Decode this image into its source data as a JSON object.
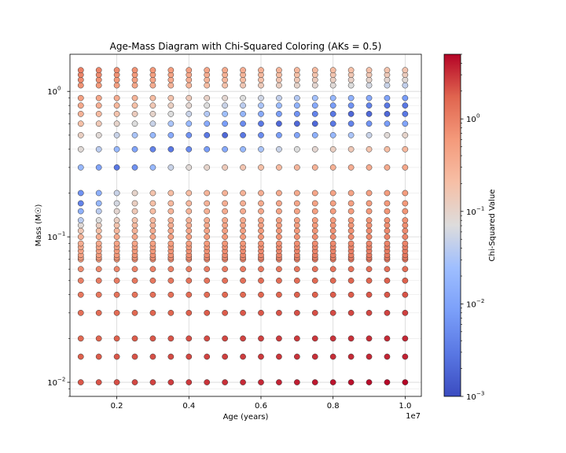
{
  "chart_data": {
    "type": "scatter",
    "title": "Age-Mass Diagram with Chi-Squared Coloring (AKs = 0.5)",
    "xlabel": "Age (years)",
    "ylabel": "Mass (M☉)",
    "x_offset_label": "1e7",
    "x_tick_labels": [
      "0.2",
      "0.4",
      "0.6",
      "0.8",
      "1.0"
    ],
    "y_tick_labels": [
      "10",
      "10",
      "10"
    ],
    "y_tick_exponents": [
      "−2",
      "−1",
      "0"
    ],
    "xscale": "linear",
    "yscale": "log",
    "xlim": [
      700000,
      10450000
    ],
    "ylim": [
      0.008,
      1.8
    ],
    "grid": true,
    "colorbar": {
      "label": "Chi-Squared Value",
      "colormap": "coolwarm",
      "scale": "log",
      "range": [
        0.001,
        5
      ],
      "tick_labels": [
        "10",
        "10",
        "10",
        "10"
      ],
      "tick_exponents": [
        "−3",
        "−2",
        "−1",
        "0"
      ]
    },
    "x": [
      1000000,
      1500000,
      2000000,
      2500000,
      3000000,
      3500000,
      4000000,
      4500000,
      5000000,
      5500000,
      6000000,
      6500000,
      7000000,
      7500000,
      8000000,
      8500000,
      9000000,
      9500000,
      10000000
    ],
    "masses": [
      0.01,
      0.015,
      0.02,
      0.03,
      0.04,
      0.05,
      0.06,
      0.07,
      0.072,
      0.075,
      0.08,
      0.085,
      0.09,
      0.1,
      0.11,
      0.12,
      0.13,
      0.15,
      0.17,
      0.2,
      0.3,
      0.4,
      0.5,
      0.6,
      0.7,
      0.8,
      0.9,
      1.0,
      1.1,
      1.2,
      1.3,
      1.4
    ],
    "chi2_by_mass": {
      "0.01": [
        2.0,
        2.1,
        2.2,
        2.4,
        2.5,
        2.7,
        2.8,
        3.0,
        3.1,
        3.3,
        3.4,
        3.6,
        3.8,
        4.0,
        4.2,
        4.4,
        4.6,
        4.8,
        5.0
      ],
      "0.015": [
        1.8,
        1.9,
        2.0,
        2.1,
        2.2,
        2.3,
        2.4,
        2.5,
        2.6,
        2.7,
        2.8,
        2.9,
        3.0,
        3.1,
        3.2,
        3.3,
        3.4,
        3.5,
        3.6
      ],
      "0.02": [
        1.6,
        1.7,
        1.8,
        1.9,
        2.0,
        2.1,
        2.2,
        2.3,
        2.4,
        2.5,
        2.6,
        2.7,
        2.8,
        2.9,
        3.0,
        3.1,
        3.2,
        3.3,
        3.4
      ],
      "0.03": [
        1.4,
        1.5,
        1.5,
        1.6,
        1.7,
        1.7,
        1.8,
        1.9,
        1.9,
        2.0,
        2.0,
        2.1,
        2.2,
        2.2,
        2.3,
        2.4,
        2.4,
        2.5,
        2.6
      ],
      "0.04": [
        1.2,
        1.2,
        1.3,
        1.3,
        1.4,
        1.4,
        1.5,
        1.5,
        1.6,
        1.6,
        1.7,
        1.7,
        1.8,
        1.8,
        1.9,
        1.9,
        2.0,
        2.0,
        2.1
      ],
      "0.05": [
        1.0,
        1.1,
        1.1,
        1.2,
        1.2,
        1.2,
        1.3,
        1.3,
        1.4,
        1.4,
        1.5,
        1.5,
        1.5,
        1.6,
        1.6,
        1.7,
        1.7,
        1.8,
        1.8
      ],
      "0.06": [
        0.8,
        0.85,
        0.9,
        0.95,
        1.0,
        1.0,
        1.05,
        1.1,
        1.1,
        1.15,
        1.2,
        1.2,
        1.25,
        1.3,
        1.3,
        1.35,
        1.4,
        1.4,
        1.45
      ],
      "0.07": [
        0.6,
        0.65,
        0.7,
        0.75,
        0.8,
        0.8,
        0.85,
        0.9,
        0.9,
        0.95,
        1.0,
        1.0,
        1.05,
        1.1,
        1.1,
        1.15,
        1.2,
        1.2,
        1.25
      ],
      "0.072": [
        0.55,
        0.6,
        0.65,
        0.7,
        0.75,
        0.75,
        0.8,
        0.85,
        0.85,
        0.9,
        0.95,
        0.95,
        1.0,
        1.05,
        1.05,
        1.1,
        1.15,
        1.15,
        1.2
      ],
      "0.075": [
        0.5,
        0.55,
        0.6,
        0.65,
        0.7,
        0.7,
        0.75,
        0.8,
        0.8,
        0.85,
        0.9,
        0.9,
        0.95,
        1.0,
        1.0,
        1.05,
        1.1,
        1.1,
        1.15
      ],
      "0.08": [
        0.45,
        0.5,
        0.55,
        0.6,
        0.6,
        0.65,
        0.7,
        0.7,
        0.75,
        0.8,
        0.8,
        0.85,
        0.9,
        0.9,
        0.95,
        1.0,
        1.0,
        1.05,
        1.1
      ],
      "0.085": [
        0.4,
        0.45,
        0.5,
        0.5,
        0.55,
        0.6,
        0.6,
        0.65,
        0.7,
        0.7,
        0.75,
        0.8,
        0.8,
        0.85,
        0.9,
        0.9,
        0.95,
        1.0,
        1.0
      ],
      "0.09": [
        0.35,
        0.4,
        0.45,
        0.45,
        0.5,
        0.55,
        0.55,
        0.6,
        0.65,
        0.65,
        0.7,
        0.75,
        0.75,
        0.8,
        0.85,
        0.85,
        0.9,
        0.95,
        0.95
      ],
      "0.1": [
        0.3,
        0.35,
        0.4,
        0.4,
        0.45,
        0.5,
        0.5,
        0.55,
        0.6,
        0.6,
        0.65,
        0.7,
        0.7,
        0.75,
        0.8,
        0.8,
        0.85,
        0.9,
        0.9
      ],
      "0.11": [
        0.15,
        0.2,
        0.25,
        0.3,
        0.35,
        0.4,
        0.4,
        0.45,
        0.5,
        0.5,
        0.55,
        0.6,
        0.6,
        0.65,
        0.7,
        0.7,
        0.75,
        0.8,
        0.8
      ],
      "0.12": [
        0.08,
        0.12,
        0.18,
        0.25,
        0.3,
        0.35,
        0.35,
        0.4,
        0.45,
        0.45,
        0.5,
        0.55,
        0.55,
        0.6,
        0.65,
        0.65,
        0.7,
        0.75,
        0.75
      ],
      "0.13": [
        0.04,
        0.07,
        0.12,
        0.18,
        0.25,
        0.3,
        0.3,
        0.35,
        0.4,
        0.4,
        0.45,
        0.5,
        0.5,
        0.55,
        0.6,
        0.6,
        0.65,
        0.7,
        0.7
      ],
      "0.15": [
        0.015,
        0.04,
        0.09,
        0.15,
        0.22,
        0.28,
        0.28,
        0.32,
        0.36,
        0.36,
        0.4,
        0.45,
        0.45,
        0.5,
        0.55,
        0.55,
        0.6,
        0.65,
        0.65
      ],
      "0.17": [
        0.004,
        0.02,
        0.06,
        0.12,
        0.2,
        0.25,
        0.25,
        0.3,
        0.33,
        0.33,
        0.38,
        0.42,
        0.42,
        0.46,
        0.5,
        0.5,
        0.55,
        0.6,
        0.6
      ],
      "0.2": [
        0.006,
        0.015,
        0.05,
        0.1,
        0.18,
        0.22,
        0.22,
        0.28,
        0.3,
        0.3,
        0.34,
        0.38,
        0.38,
        0.42,
        0.46,
        0.46,
        0.5,
        0.55,
        0.55
      ],
      "0.3": [
        0.02,
        0.01,
        0.003,
        0.006,
        0.02,
        0.05,
        0.08,
        0.1,
        0.14,
        0.17,
        0.2,
        0.24,
        0.27,
        0.3,
        0.32,
        0.34,
        0.36,
        0.38,
        0.4
      ],
      "0.4": [
        0.08,
        0.04,
        0.02,
        0.01,
        0.004,
        0.003,
        0.005,
        0.008,
        0.012,
        0.02,
        0.03,
        0.05,
        0.07,
        0.09,
        0.12,
        0.15,
        0.18,
        0.22,
        0.25
      ],
      "0.5": [
        0.12,
        0.08,
        0.05,
        0.03,
        0.02,
        0.012,
        0.006,
        0.003,
        0.002,
        0.003,
        0.005,
        0.008,
        0.01,
        0.015,
        0.02,
        0.03,
        0.05,
        0.08,
        0.1
      ],
      "0.6": [
        0.2,
        0.15,
        0.1,
        0.07,
        0.05,
        0.03,
        0.02,
        0.012,
        0.008,
        0.005,
        0.003,
        0.002,
        0.002,
        0.002,
        0.003,
        0.004,
        0.006,
        0.008,
        0.01
      ],
      "0.7": [
        0.3,
        0.24,
        0.18,
        0.13,
        0.1,
        0.07,
        0.05,
        0.035,
        0.025,
        0.018,
        0.012,
        0.008,
        0.006,
        0.004,
        0.003,
        0.002,
        0.002,
        0.002,
        0.003
      ],
      "0.8": [
        0.4,
        0.33,
        0.26,
        0.2,
        0.16,
        0.12,
        0.09,
        0.07,
        0.05,
        0.04,
        0.03,
        0.022,
        0.016,
        0.012,
        0.008,
        0.006,
        0.004,
        0.003,
        0.003
      ],
      "0.9": [
        0.5,
        0.42,
        0.35,
        0.28,
        0.22,
        0.18,
        0.14,
        0.11,
        0.09,
        0.07,
        0.055,
        0.045,
        0.035,
        0.027,
        0.02,
        0.016,
        0.012,
        0.01,
        0.008
      ],
      "1.0": [
        0.6,
        0.5,
        0.42,
        0.35,
        0.3,
        0.25,
        0.2,
        0.17,
        0.14,
        0.12,
        0.1,
        0.085,
        0.07,
        0.058,
        0.048,
        0.04,
        0.033,
        0.027,
        0.022
      ],
      "1.1": [
        0.7,
        0.6,
        0.5,
        0.42,
        0.36,
        0.3,
        0.26,
        0.22,
        0.19,
        0.16,
        0.14,
        0.12,
        0.1,
        0.09,
        0.08,
        0.07,
        0.06,
        0.05,
        0.045
      ],
      "1.2": [
        0.8,
        0.7,
        0.6,
        0.5,
        0.44,
        0.38,
        0.33,
        0.28,
        0.25,
        0.22,
        0.19,
        0.17,
        0.15,
        0.13,
        0.12,
        0.11,
        0.1,
        0.09,
        0.08
      ],
      "1.3": [
        0.9,
        0.8,
        0.7,
        0.6,
        0.52,
        0.46,
        0.4,
        0.35,
        0.31,
        0.28,
        0.25,
        0.22,
        0.2,
        0.18,
        0.17,
        0.16,
        0.15,
        0.14,
        0.13
      ],
      "1.4": [
        1.0,
        0.9,
        0.8,
        0.7,
        0.62,
        0.55,
        0.48,
        0.43,
        0.38,
        0.34,
        0.31,
        0.28,
        0.26,
        0.24,
        0.22,
        0.2,
        0.19,
        0.18,
        0.17
      ]
    }
  }
}
